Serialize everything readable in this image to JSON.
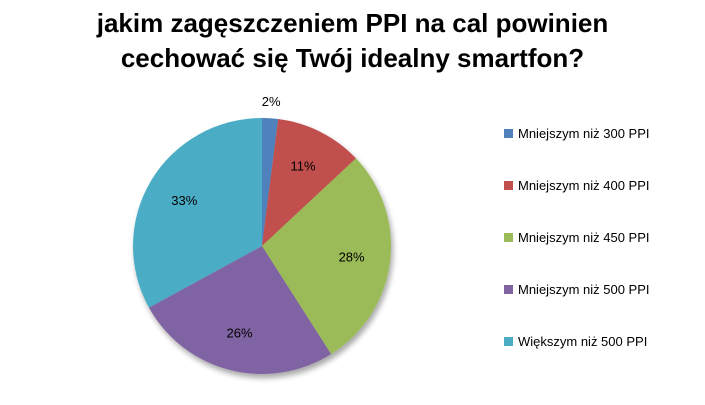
{
  "chart_data": {
    "type": "pie",
    "title_lines": [
      "jakim zagęszczeniem PPI na cal powinien",
      "cechować się Twój idealny smartfon?"
    ],
    "slices": [
      {
        "label": "Mniejszym niż 300 PPI",
        "value": 2,
        "value_label": "2%",
        "color": "#4F81BD"
      },
      {
        "label": "Mniejszym niż 400 PPI",
        "value": 11,
        "value_label": "11%",
        "color": "#C0504D"
      },
      {
        "label": "Mniejszym niż 450 PPI",
        "value": 28,
        "value_label": "28%",
        "color": "#9BBB59"
      },
      {
        "label": "Mniejszym niż 500 PPI",
        "value": 26,
        "value_label": "26%",
        "color": "#8064A2"
      },
      {
        "label": "Większym niż 500 PPI",
        "value": 33,
        "value_label": "33%",
        "color": "#4BACC6"
      }
    ],
    "legend_position": "right",
    "start": "top, clockwise"
  }
}
